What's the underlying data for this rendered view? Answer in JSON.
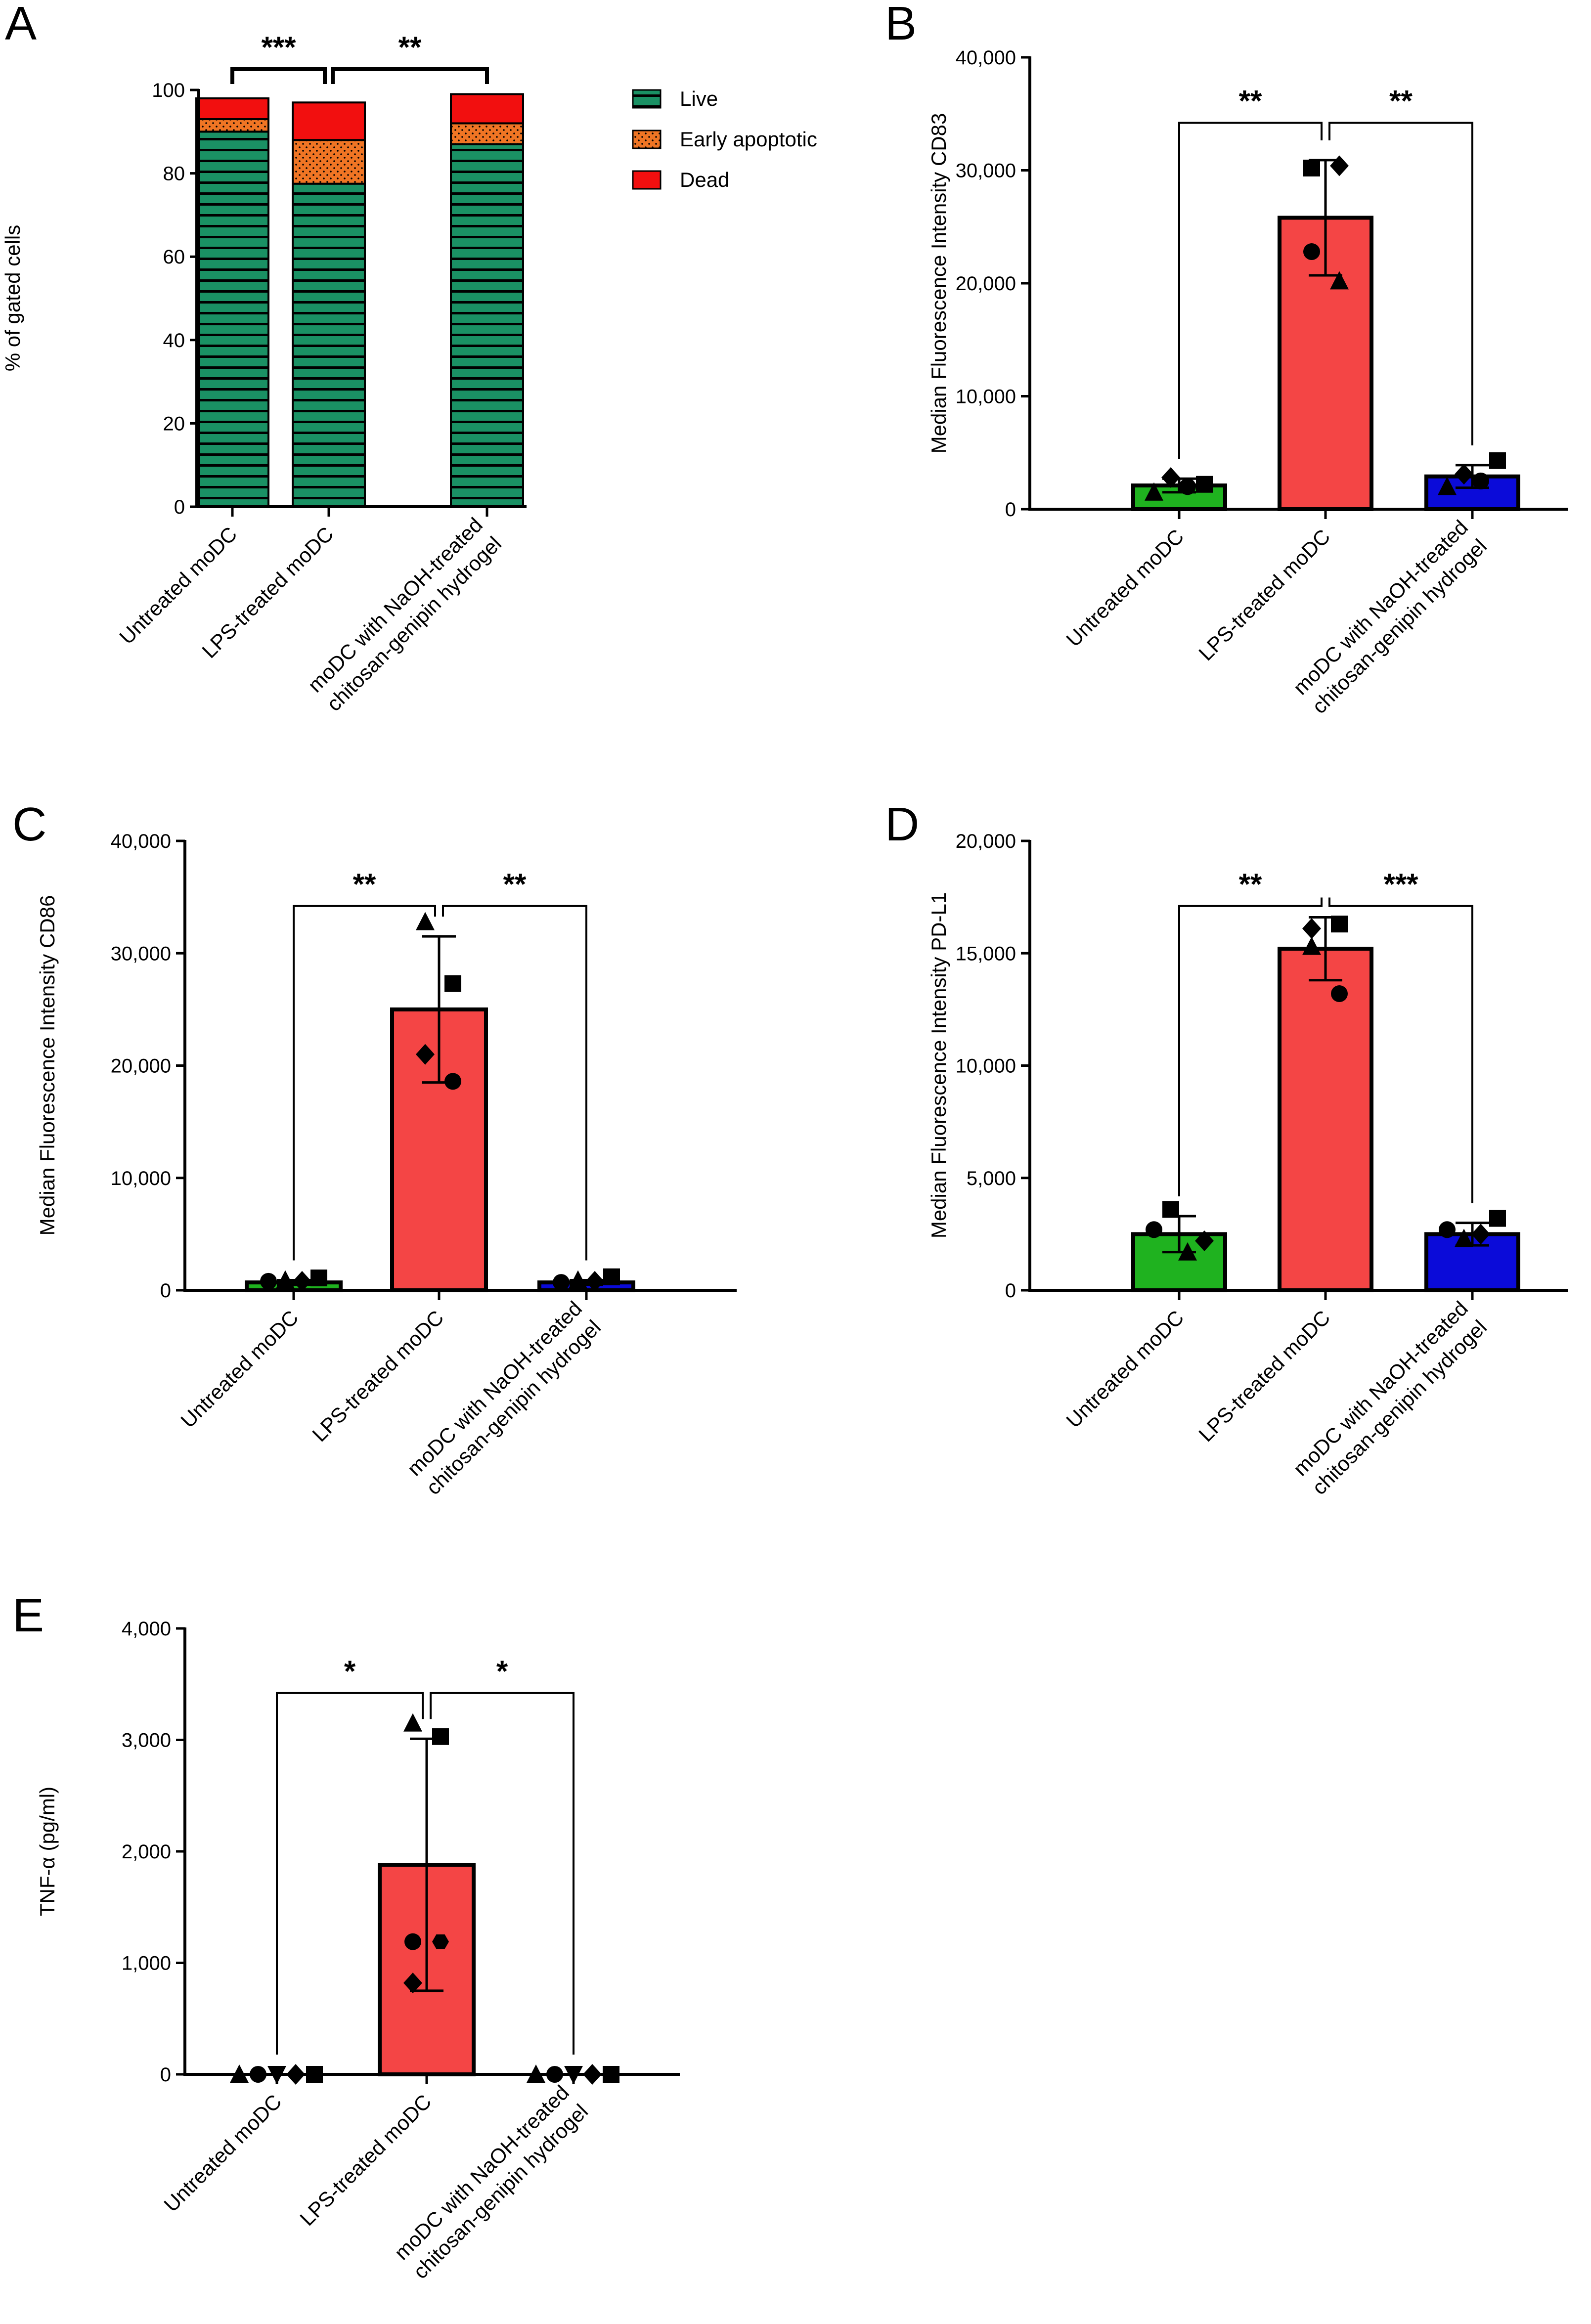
{
  "figure": {
    "colors": {
      "live": "#1a9164",
      "early": "#f07524",
      "dead": "#f20f0f",
      "untreated": "#1fb21f",
      "lps": "#f44545",
      "hydrogel": "#0b0bd9",
      "black": "#000000"
    }
  },
  "chart_data": [
    {
      "panel": "A",
      "type": "bar",
      "stacked": true,
      "categories": [
        "Untreated moDC",
        "LPS-treated moDC",
        "moDC with NaOH-treated chitosan-genipin hydrogel"
      ],
      "category_lines": [
        [
          "Untreated moDC"
        ],
        [
          "LPS-treated moDC"
        ],
        [
          "moDC with NaOH-treated",
          "chitosan-genipin hydrogel"
        ]
      ],
      "series": [
        {
          "name": "Live",
          "values": [
            90,
            77.5,
            87
          ]
        },
        {
          "name": "Early apoptotic",
          "values": [
            3,
            10.5,
            5
          ]
        },
        {
          "name": "Dead",
          "values": [
            5,
            9,
            7
          ]
        }
      ],
      "ylabel": "% of gated cells",
      "ylim": [
        0,
        100
      ],
      "yticks": [
        0,
        20,
        40,
        60,
        80,
        100
      ],
      "ytick_labels": [
        "0",
        "20",
        "40",
        "60",
        "80",
        "100"
      ],
      "legend": "top-right",
      "significance": [
        {
          "from": 0,
          "to": 1,
          "label": "***"
        },
        {
          "from": 1,
          "to": 2,
          "label": "**"
        }
      ]
    },
    {
      "panel": "B",
      "type": "bar",
      "categories": [
        "Untreated moDC",
        "LPS-treated moDC",
        "moDC with NaOH-treated chitosan-genipin hydrogel"
      ],
      "category_lines": [
        [
          "Untreated moDC"
        ],
        [
          "LPS-treated moDC"
        ],
        [
          "moDC with NaOH-treated",
          "chitosan-genipin hydrogel"
        ]
      ],
      "values": [
        2100,
        25800,
        2900
      ],
      "errors": [
        600,
        5100,
        1000
      ],
      "points": [
        [
          {
            "shape": "triangle",
            "v": 1500
          },
          {
            "shape": "diamond",
            "v": 2800
          },
          {
            "shape": "circle",
            "v": 2000
          },
          {
            "shape": "square",
            "v": 2200
          }
        ],
        [
          {
            "shape": "square",
            "v": 30200
          },
          {
            "shape": "diamond",
            "v": 30400
          },
          {
            "shape": "circle",
            "v": 22800
          },
          {
            "shape": "triangle",
            "v": 20200
          }
        ],
        [
          {
            "shape": "triangle",
            "v": 2000
          },
          {
            "shape": "diamond",
            "v": 3100
          },
          {
            "shape": "circle",
            "v": 2500
          },
          {
            "shape": "square",
            "v": 4300
          }
        ]
      ],
      "ylabel": "Median Fluorescence Intensity CD83",
      "ylim": [
        0,
        40000
      ],
      "yticks": [
        0,
        10000,
        20000,
        30000,
        40000
      ],
      "ytick_labels": [
        "0",
        "10,000",
        "20,000",
        "30,000",
        "40,000"
      ],
      "significance": [
        {
          "from": 0,
          "to": 1,
          "label": "**"
        },
        {
          "from": 1,
          "to": 2,
          "label": "**"
        }
      ]
    },
    {
      "panel": "C",
      "type": "bar",
      "categories": [
        "Untreated moDC",
        "LPS-treated moDC",
        "moDC with NaOH-treated chitosan-genipin hydrogel"
      ],
      "category_lines": [
        [
          "Untreated moDC"
        ],
        [
          "LPS-treated moDC"
        ],
        [
          "moDC with NaOH-treated",
          "chitosan-genipin hydrogel"
        ]
      ],
      "values": [
        700,
        25000,
        700
      ],
      "errors": [
        200,
        6500,
        200
      ],
      "points": [
        [
          {
            "shape": "circle",
            "v": 800
          },
          {
            "shape": "triangle",
            "v": 900
          },
          {
            "shape": "diamond",
            "v": 800
          },
          {
            "shape": "square",
            "v": 1100
          }
        ],
        [
          {
            "shape": "triangle",
            "v": 32800
          },
          {
            "shape": "square",
            "v": 27300
          },
          {
            "shape": "diamond",
            "v": 21000
          },
          {
            "shape": "circle",
            "v": 18600
          }
        ],
        [
          {
            "shape": "circle",
            "v": 700
          },
          {
            "shape": "triangle",
            "v": 900
          },
          {
            "shape": "diamond",
            "v": 800
          },
          {
            "shape": "square",
            "v": 1200
          }
        ]
      ],
      "ylabel": "Median Fluorescence Intensity CD86",
      "ylim": [
        0,
        40000
      ],
      "yticks": [
        0,
        10000,
        20000,
        30000,
        40000
      ],
      "ytick_labels": [
        "0",
        "10,000",
        "20,000",
        "30,000",
        "40,000"
      ],
      "significance": [
        {
          "from": 0,
          "to": 1,
          "label": "**"
        },
        {
          "from": 1,
          "to": 2,
          "label": "**"
        }
      ]
    },
    {
      "panel": "D",
      "type": "bar",
      "categories": [
        "Untreated moDC",
        "LPS-treated moDC",
        "moDC with NaOH-treated chitosan-genipin hydrogel"
      ],
      "category_lines": [
        [
          "Untreated moDC"
        ],
        [
          "LPS-treated moDC"
        ],
        [
          "moDC with NaOH-treated",
          "chitosan-genipin hydrogel"
        ]
      ],
      "values": [
        2500,
        15200,
        2500
      ],
      "errors": [
        800,
        1400,
        500
      ],
      "points": [
        [
          {
            "shape": "circle",
            "v": 2700
          },
          {
            "shape": "square",
            "v": 3600
          },
          {
            "shape": "triangle",
            "v": 1700
          },
          {
            "shape": "diamond",
            "v": 2200
          }
        ],
        [
          {
            "shape": "diamond",
            "v": 16100
          },
          {
            "shape": "square",
            "v": 16300
          },
          {
            "shape": "triangle",
            "v": 15300
          },
          {
            "shape": "circle",
            "v": 13200
          }
        ],
        [
          {
            "shape": "circle",
            "v": 2700
          },
          {
            "shape": "triangle",
            "v": 2300
          },
          {
            "shape": "diamond",
            "v": 2500
          },
          {
            "shape": "square",
            "v": 3200
          }
        ]
      ],
      "ylabel": "Median Fluorescence Intensity PD-L1",
      "ylim": [
        0,
        20000
      ],
      "yticks": [
        0,
        5000,
        10000,
        15000,
        20000
      ],
      "ytick_labels": [
        "0",
        "5,000",
        "10,000",
        "15,000",
        "20,000"
      ],
      "significance": [
        {
          "from": 0,
          "to": 1,
          "label": "**"
        },
        {
          "from": 1,
          "to": 2,
          "label": "***"
        }
      ]
    },
    {
      "panel": "E",
      "type": "bar",
      "categories": [
        "Untreated moDC",
        "LPS-treated moDC",
        "moDC with NaOH-treated chitosan-genipin hydrogel"
      ],
      "category_lines": [
        [
          "Untreated moDC"
        ],
        [
          "LPS-treated moDC"
        ],
        [
          "moDC with NaOH-treated",
          "chitosan-genipin hydrogel"
        ]
      ],
      "values": [
        0,
        1880,
        0
      ],
      "errors": [
        0,
        1130,
        0
      ],
      "points": [
        [
          {
            "shape": "triangle",
            "v": 0
          },
          {
            "shape": "circle",
            "v": 0
          },
          {
            "shape": "triangle-down",
            "v": 0
          },
          {
            "shape": "diamond",
            "v": 0
          },
          {
            "shape": "square",
            "v": 0
          }
        ],
        [
          {
            "shape": "triangle",
            "v": 3150
          },
          {
            "shape": "square",
            "v": 3030
          },
          {
            "shape": "circle",
            "v": 1190
          },
          {
            "shape": "hexagon",
            "v": 1190
          },
          {
            "shape": "diamond",
            "v": 820
          }
        ],
        [
          {
            "shape": "triangle",
            "v": 0
          },
          {
            "shape": "circle",
            "v": 0
          },
          {
            "shape": "triangle-down",
            "v": 0
          },
          {
            "shape": "diamond",
            "v": 0
          },
          {
            "shape": "square",
            "v": 0
          }
        ]
      ],
      "ylabel": "TNF-α (pg/ml)",
      "ylim": [
        0,
        4000
      ],
      "yticks": [
        0,
        1000,
        2000,
        3000,
        4000
      ],
      "ytick_labels": [
        "0",
        "1,000",
        "2,000",
        "3,000",
        "4,000"
      ],
      "significance": [
        {
          "from": 0,
          "to": 1,
          "label": "*"
        },
        {
          "from": 1,
          "to": 2,
          "label": "*"
        }
      ]
    }
  ]
}
